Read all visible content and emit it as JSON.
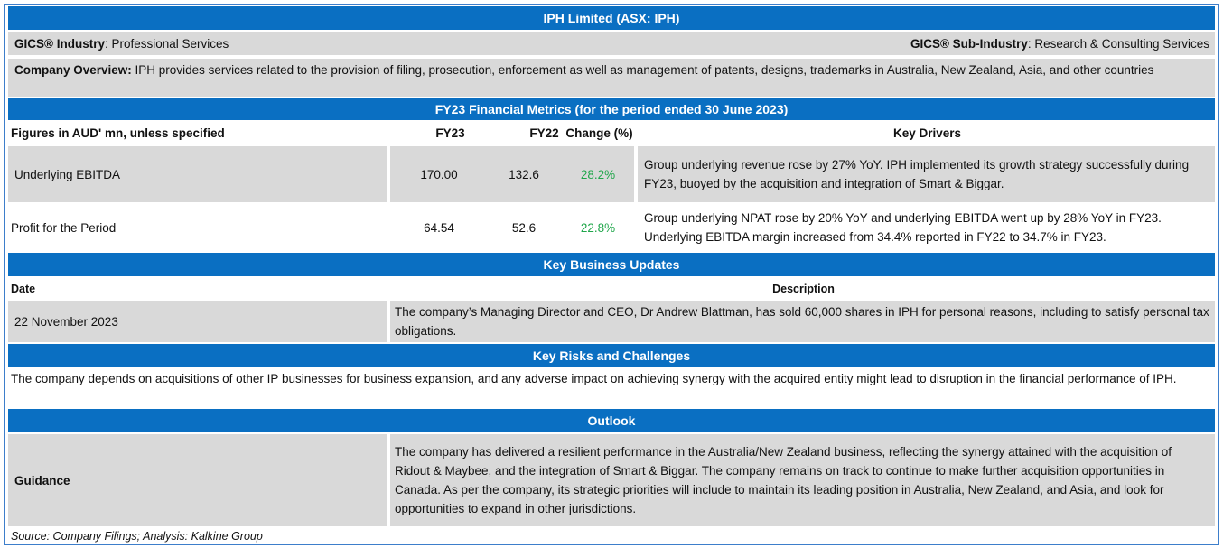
{
  "title": "IPH Limited (ASX: IPH)",
  "gics": {
    "industry_label": "GICS® Industry",
    "industry_value": ": Professional Services",
    "sub_industry_label": "GICS® Sub-Industry",
    "sub_industry_value": ": Research & Consulting Services"
  },
  "overview": {
    "label": "Company Overview:",
    "text": " IPH provides services related to the provision of filing, prosecution, enforcement as well as management of patents, designs, trademarks in Australia, New Zealand, Asia, and other countries"
  },
  "financials": {
    "heading": "FY23 Financial Metrics (for the period ended 30 June 2023)",
    "columns": {
      "metric": "Figures in AUD' mn, unless specified",
      "fy23": "FY23",
      "fy22": "FY22",
      "change": "Change (%)",
      "drivers": "Key Drivers"
    },
    "rows": [
      {
        "metric": "Underlying EBITDA",
        "fy23": "170.00",
        "fy22": "132.6",
        "change": "28.2%",
        "driver": "Group underlying revenue rose by 27% YoY. IPH implemented its growth strategy successfully during FY23, buoyed by the acquisition and  integration of Smart & Biggar."
      },
      {
        "metric": "Profit for the Period",
        "fy23": "64.54",
        "fy22": "52.6",
        "change": "22.8%",
        "driver": "Group underlying NPAT rose by 20% YoY and underlying EBITDA went up by 28% YoY in FY23. Underlying EBITDA margin increased from 34.4% reported in FY22 to 34.7% in FY23."
      }
    ]
  },
  "updates": {
    "heading": "Key Business Updates",
    "col_date": "Date",
    "col_description": "Description",
    "rows": [
      {
        "date": "22 November 2023",
        "description": "The company’s Managing Director and CEO, Dr Andrew Blattman, has sold 60,000 shares in IPH for personal reasons, including to satisfy personal tax obligations."
      }
    ]
  },
  "risks": {
    "heading": "Key Risks and Challenges",
    "text": "The company depends on acquisitions of other IP businesses for business expansion, and any adverse impact on achieving synergy with the acquired entity might lead to disruption in the financial performance of IPH."
  },
  "outlook": {
    "heading": "Outlook",
    "label": "Guidance",
    "text": "The company has delivered a resilient performance in the Australia/New Zealand business, reflecting the synergy attained with the acquisition of Ridout & Maybee, and the integration of Smart & Biggar. The company remains on track to continue to make further acquisition opportunities in Canada. As per the company, its strategic priorities will include to maintain its leading position in Australia, New Zealand, and Asia, and look for opportunities to expand in other jurisdictions."
  },
  "source": "Source: Company Filings; Analysis: Kalkine Group",
  "colors": {
    "band": "#0a6fc2",
    "grey": "#d9d9d9",
    "positive": "#1fa64a",
    "border": "#3d7ecb"
  }
}
